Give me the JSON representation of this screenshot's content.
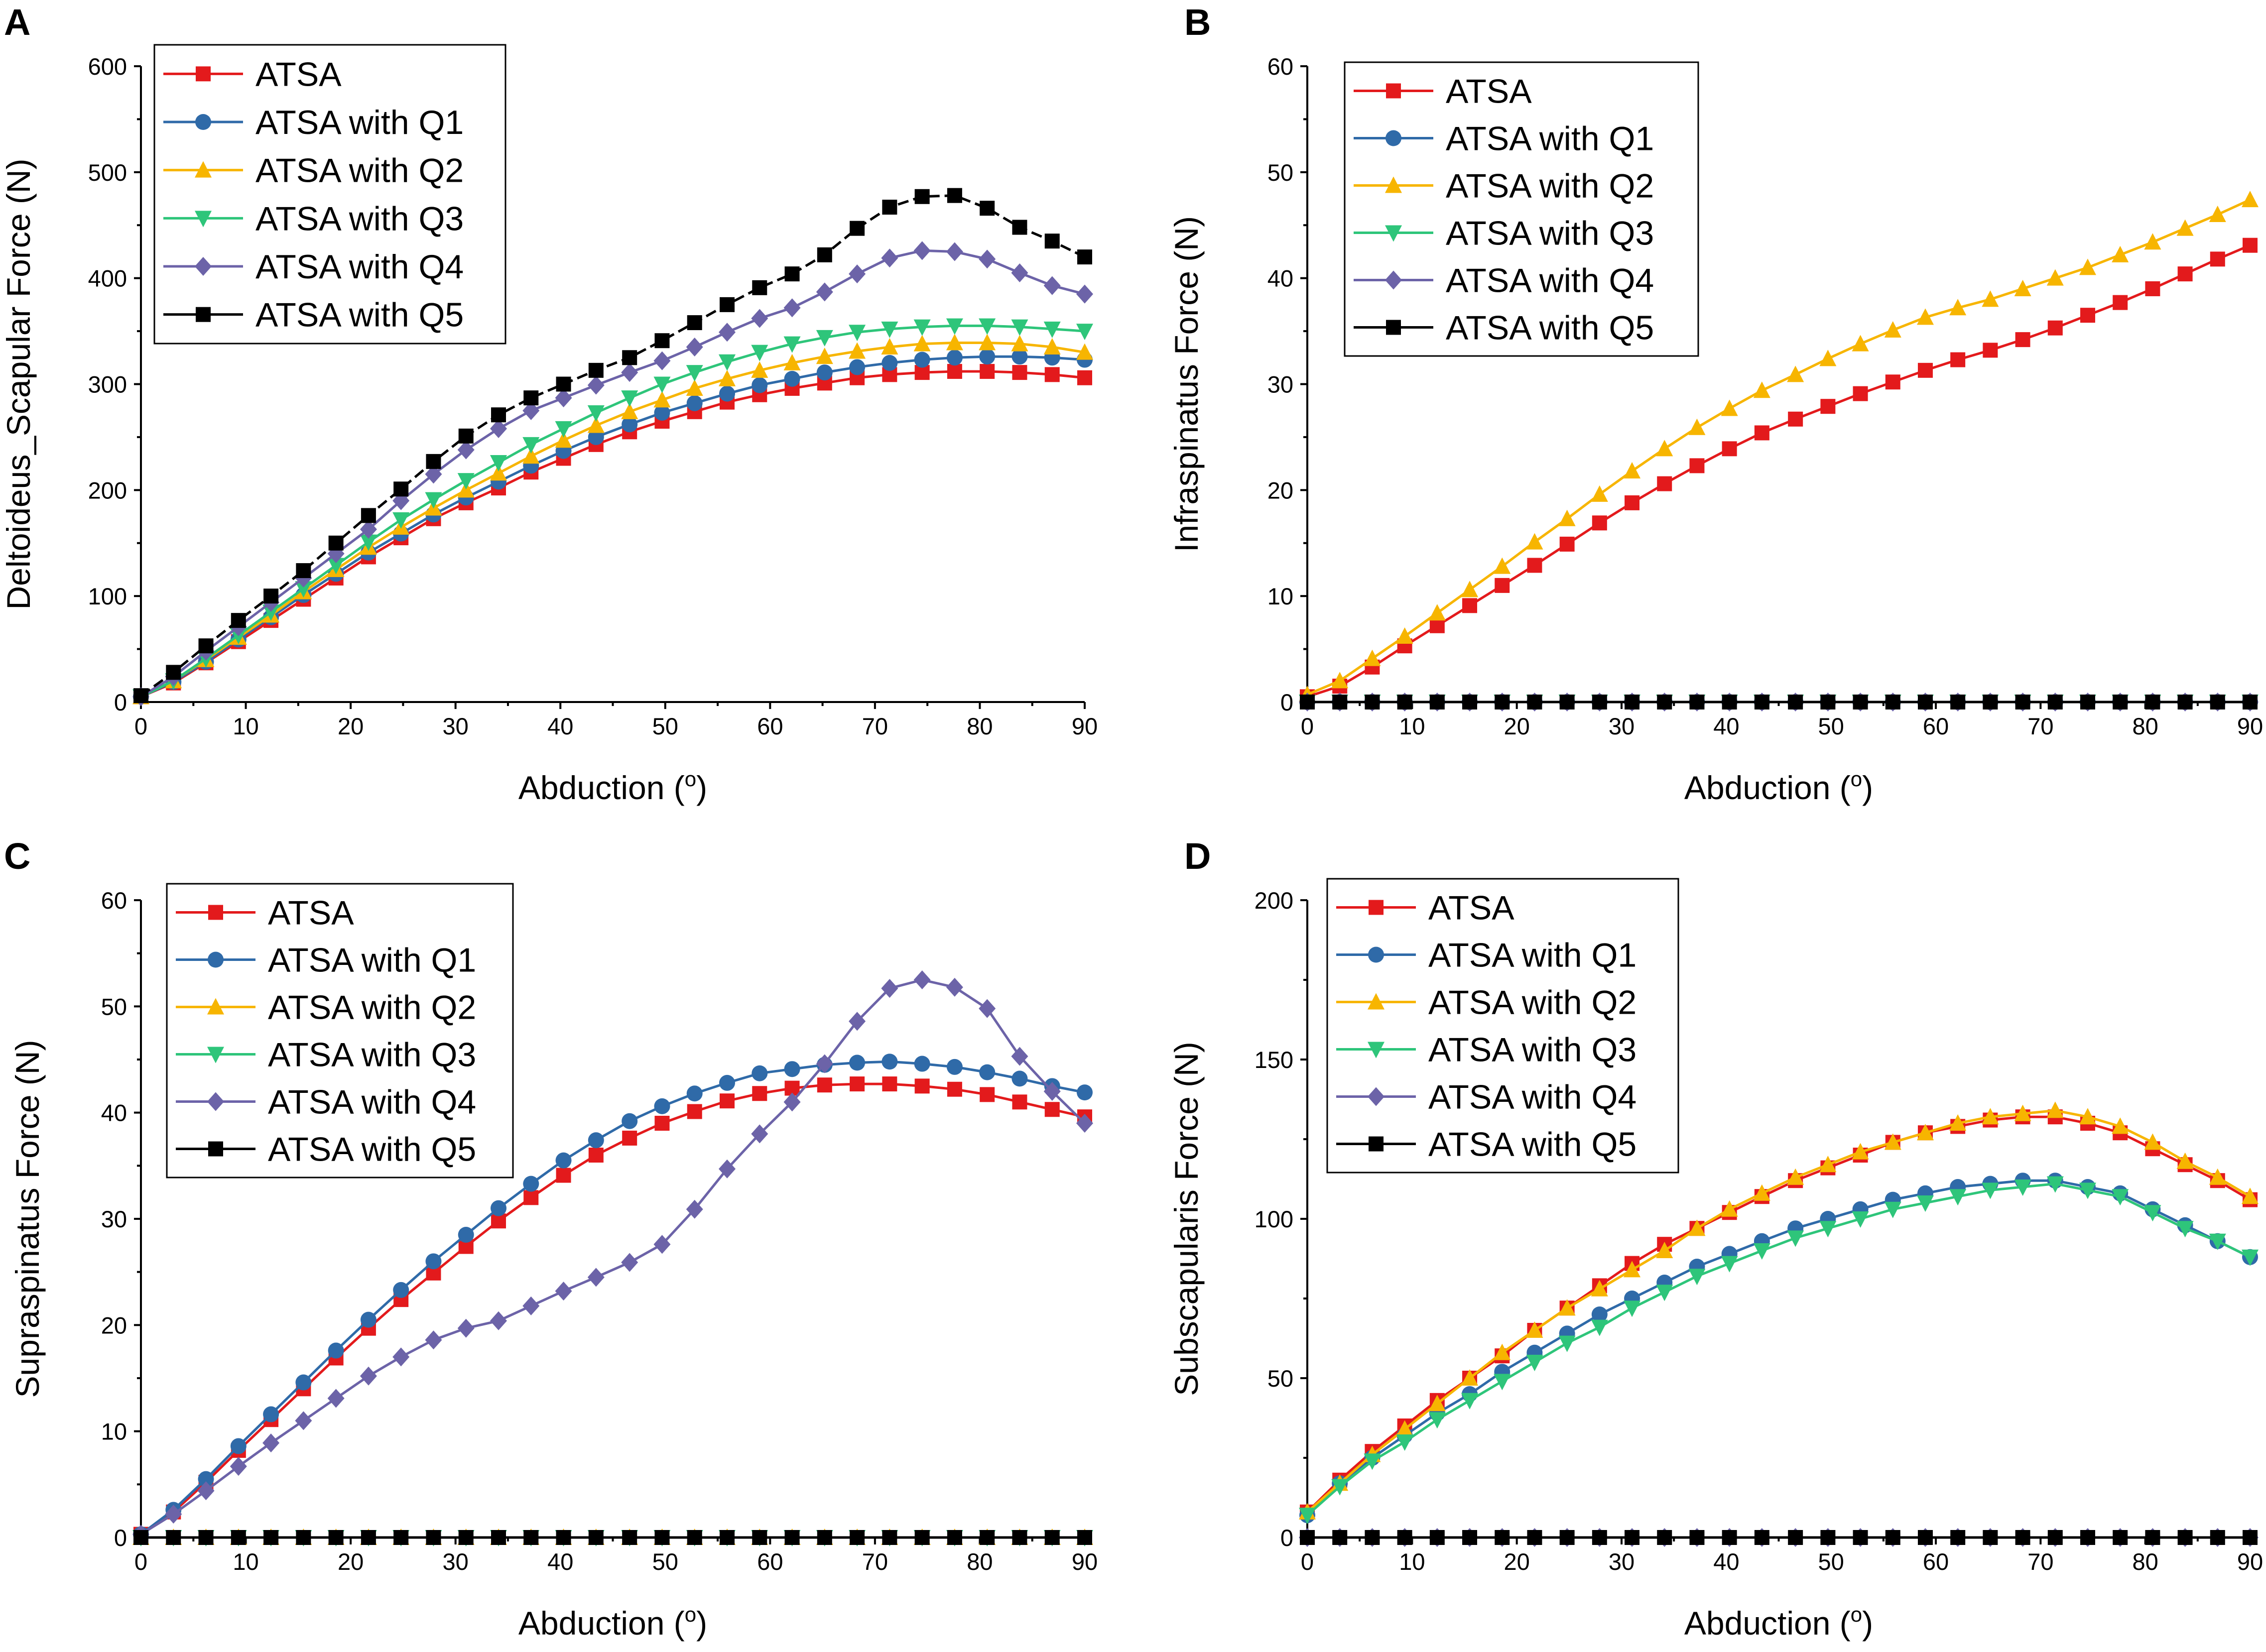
{
  "figure": {
    "series_names": [
      "ATSA",
      "ATSA with Q1",
      "ATSA with Q2",
      "ATSA with Q3",
      "ATSA with Q4",
      "ATSA with Q5"
    ],
    "series_colors": [
      "#e31a1c",
      "#2f6aa8",
      "#f7b500",
      "#2ec57a",
      "#6c63a8",
      "#000000"
    ],
    "series_markers": [
      "square",
      "circle",
      "triangle-up",
      "triangle-down",
      "diamond",
      "square"
    ]
  },
  "chart_data": [
    {
      "id": "A",
      "panel_label": "A",
      "type": "line",
      "title": "",
      "xlabel": "Abduction (",
      "xlabel_sup": "o",
      "xlabel_end": ")",
      "ylabel": "Deltoideus_Scapular Force (N)",
      "xlim": [
        0,
        90
      ],
      "ylim": [
        0,
        600
      ],
      "xticks": [
        0,
        10,
        20,
        30,
        40,
        50,
        60,
        70,
        80,
        90
      ],
      "yticks": [
        0,
        100,
        200,
        300,
        400,
        500,
        600
      ],
      "legend": "top-left",
      "x": [
        0,
        3.1,
        6.2,
        9.3,
        12.4,
        15.5,
        18.6,
        21.7,
        24.8,
        27.9,
        31.0,
        34.1,
        37.2,
        40.3,
        43.4,
        46.6,
        49.7,
        52.8,
        55.9,
        59.0,
        62.1,
        65.2,
        68.3,
        71.4,
        74.5,
        77.6,
        80.7,
        83.8,
        86.9,
        90.0
      ],
      "series": [
        {
          "name": "ATSA",
          "values": [
            5,
            18,
            37,
            57,
            77,
            97,
            117,
            137,
            155,
            173,
            188,
            202,
            217,
            230,
            243,
            255,
            265,
            274,
            283,
            290,
            296,
            301,
            306,
            309,
            311,
            312,
            312,
            311,
            309,
            306
          ]
        },
        {
          "name": "ATSA with Q1",
          "values": [
            5,
            19,
            38,
            59,
            80,
            101,
            121,
            141,
            159,
            177,
            193,
            208,
            223,
            237,
            250,
            262,
            273,
            282,
            291,
            299,
            305,
            311,
            316,
            320,
            323,
            325,
            326,
            326,
            325,
            323
          ]
        },
        {
          "name": "ATSA with Q2",
          "values": [
            5,
            20,
            40,
            61,
            82,
            104,
            125,
            146,
            165,
            183,
            200,
            216,
            232,
            247,
            261,
            274,
            285,
            296,
            305,
            313,
            320,
            326,
            331,
            335,
            338,
            339,
            339,
            338,
            335,
            330
          ]
        },
        {
          "name": "ATSA with Q3",
          "values": [
            5,
            20,
            41,
            63,
            85,
            107,
            129,
            151,
            172,
            191,
            209,
            226,
            243,
            258,
            273,
            287,
            300,
            311,
            321,
            330,
            338,
            344,
            349,
            352,
            354,
            355,
            355,
            354,
            352,
            350
          ]
        },
        {
          "name": "ATSA with Q4",
          "values": [
            5,
            24,
            48,
            71,
            94,
            117,
            140,
            163,
            190,
            215,
            238,
            258,
            275,
            287,
            299,
            311,
            322,
            335,
            349,
            362,
            372,
            387,
            404,
            419,
            426,
            425,
            418,
            405,
            393,
            385
          ]
        },
        {
          "name": "ATSA with Q5",
          "values": [
            6,
            28,
            53,
            77,
            100,
            124,
            150,
            176,
            201,
            227,
            251,
            271,
            287,
            300,
            313,
            325,
            341,
            358,
            375,
            391,
            404,
            422,
            447,
            467,
            477,
            478,
            466,
            448,
            435,
            420
          ]
        }
      ]
    },
    {
      "id": "B",
      "panel_label": "B",
      "type": "line",
      "title": "",
      "xlabel": "Abduction (",
      "xlabel_sup": "o",
      "xlabel_end": ")",
      "ylabel": "Infraspinatus Force (N)",
      "xlim": [
        0,
        90
      ],
      "ylim": [
        0,
        60
      ],
      "xticks": [
        0,
        10,
        20,
        30,
        40,
        50,
        60,
        70,
        80,
        90
      ],
      "yticks": [
        0,
        10,
        20,
        30,
        40,
        50,
        60
      ],
      "legend": "top-left",
      "x": [
        0,
        3.1,
        6.2,
        9.3,
        12.4,
        15.5,
        18.6,
        21.7,
        24.8,
        27.9,
        31.0,
        34.1,
        37.2,
        40.3,
        43.4,
        46.6,
        49.7,
        52.8,
        55.9,
        59.0,
        62.1,
        65.2,
        68.3,
        71.4,
        74.5,
        77.6,
        80.7,
        83.8,
        86.9,
        90.0
      ],
      "series": [
        {
          "name": "ATSA",
          "values": [
            0.5,
            1.5,
            3.3,
            5.3,
            7.2,
            9.1,
            11.0,
            12.9,
            14.9,
            16.9,
            18.8,
            20.6,
            22.3,
            23.9,
            25.4,
            26.7,
            27.9,
            29.1,
            30.2,
            31.3,
            32.3,
            33.2,
            34.2,
            35.3,
            36.5,
            37.7,
            39.0,
            40.4,
            41.8,
            43.1
          ]
        },
        {
          "name": "ATSA with Q1",
          "values": [
            0,
            0,
            0,
            0,
            0,
            0,
            0,
            0,
            0,
            0,
            0,
            0,
            0,
            0,
            0,
            0,
            0,
            0,
            0,
            0,
            0,
            0,
            0,
            0,
            0,
            0,
            0,
            0,
            0,
            0
          ]
        },
        {
          "name": "ATSA with Q2",
          "values": [
            0.7,
            2.0,
            4.1,
            6.2,
            8.4,
            10.6,
            12.8,
            15.1,
            17.3,
            19.6,
            21.8,
            23.9,
            25.9,
            27.7,
            29.4,
            30.9,
            32.4,
            33.8,
            35.1,
            36.3,
            37.2,
            38.0,
            39.0,
            40.0,
            41.0,
            42.2,
            43.4,
            44.7,
            46.0,
            47.4
          ]
        },
        {
          "name": "ATSA with Q3",
          "values": [
            0,
            0,
            0,
            0,
            0,
            0,
            0,
            0,
            0,
            0,
            0,
            0,
            0,
            0,
            0,
            0,
            0,
            0,
            0,
            0,
            0,
            0,
            0,
            0,
            0,
            0,
            0,
            0,
            0,
            0
          ]
        },
        {
          "name": "ATSA with Q4",
          "values": [
            0,
            0,
            0,
            0,
            0,
            0,
            0,
            0,
            0,
            0,
            0,
            0,
            0,
            0,
            0,
            0,
            0,
            0,
            0,
            0,
            0,
            0,
            0,
            0,
            0,
            0,
            0,
            0,
            0,
            0
          ]
        },
        {
          "name": "ATSA with Q5",
          "values": [
            0,
            0,
            0,
            0,
            0,
            0,
            0,
            0,
            0,
            0,
            0,
            0,
            0,
            0,
            0,
            0,
            0,
            0,
            0,
            0,
            0,
            0,
            0,
            0,
            0,
            0,
            0,
            0,
            0,
            0
          ]
        }
      ]
    },
    {
      "id": "C",
      "panel_label": "C",
      "type": "line",
      "title": "",
      "xlabel": "Abduction (",
      "xlabel_sup": "o",
      "xlabel_end": ")",
      "ylabel": "Supraspinatus Force (N)",
      "xlim": [
        0,
        90
      ],
      "ylim": [
        0,
        60
      ],
      "xticks": [
        0,
        10,
        20,
        30,
        40,
        50,
        60,
        70,
        80,
        90
      ],
      "yticks": [
        0,
        10,
        20,
        30,
        40,
        50,
        60
      ],
      "legend": "top-left",
      "x": [
        0,
        3.1,
        6.2,
        9.3,
        12.4,
        15.5,
        18.6,
        21.7,
        24.8,
        27.9,
        31.0,
        34.1,
        37.2,
        40.3,
        43.4,
        46.6,
        49.7,
        52.8,
        55.9,
        59.0,
        62.1,
        65.2,
        68.3,
        71.4,
        74.5,
        77.6,
        80.7,
        83.8,
        86.9,
        90.0
      ],
      "series": [
        {
          "name": "ATSA",
          "values": [
            0.3,
            2.4,
            5.2,
            8.2,
            11.1,
            14.0,
            16.9,
            19.7,
            22.4,
            24.9,
            27.4,
            29.8,
            32.0,
            34.1,
            36.0,
            37.6,
            39.0,
            40.1,
            41.1,
            41.8,
            42.3,
            42.6,
            42.7,
            42.7,
            42.5,
            42.2,
            41.7,
            41.0,
            40.3,
            39.6
          ]
        },
        {
          "name": "ATSA with Q1",
          "values": [
            0.3,
            2.6,
            5.5,
            8.6,
            11.6,
            14.6,
            17.6,
            20.5,
            23.3,
            26.0,
            28.5,
            31.0,
            33.3,
            35.5,
            37.4,
            39.2,
            40.6,
            41.8,
            42.8,
            43.7,
            44.1,
            44.5,
            44.7,
            44.8,
            44.6,
            44.3,
            43.8,
            43.2,
            42.5,
            41.9
          ]
        },
        {
          "name": "ATSA with Q2",
          "values": [
            0,
            0,
            0,
            0,
            0,
            0,
            0,
            0,
            0,
            0,
            0,
            0,
            0,
            0,
            0,
            0,
            0,
            0,
            0,
            0,
            0,
            0,
            0,
            0,
            0,
            0,
            0,
            0,
            0,
            0
          ]
        },
        {
          "name": "ATSA with Q3",
          "values": [
            0,
            0,
            0,
            0,
            0,
            0,
            0,
            0,
            0,
            0,
            0,
            0,
            0,
            0,
            0,
            0,
            0,
            0,
            0,
            0,
            0,
            0,
            0,
            0,
            0,
            0,
            0,
            0,
            0,
            0
          ]
        },
        {
          "name": "ATSA with Q4",
          "values": [
            0.3,
            2.2,
            4.4,
            6.7,
            8.9,
            11.0,
            13.1,
            15.2,
            17.0,
            18.6,
            19.7,
            20.4,
            21.8,
            23.2,
            24.5,
            25.9,
            27.6,
            30.9,
            34.7,
            38.0,
            41.0,
            44.6,
            48.6,
            51.7,
            52.5,
            51.8,
            49.8,
            45.3,
            42.0,
            39.0
          ]
        },
        {
          "name": "ATSA with Q5",
          "values": [
            0,
            0,
            0,
            0,
            0,
            0,
            0,
            0,
            0,
            0,
            0,
            0,
            0,
            0,
            0,
            0,
            0,
            0,
            0,
            0,
            0,
            0,
            0,
            0,
            0,
            0,
            0,
            0,
            0,
            0
          ]
        }
      ]
    },
    {
      "id": "D",
      "panel_label": "D",
      "type": "line",
      "title": "",
      "xlabel": "Abduction (",
      "xlabel_sup": "o",
      "xlabel_end": ")",
      "ylabel": "Subscapularis Force (N)",
      "xlim": [
        0,
        90
      ],
      "ylim": [
        0,
        200
      ],
      "xticks": [
        0,
        10,
        20,
        30,
        40,
        50,
        60,
        70,
        80,
        90
      ],
      "yticks": [
        0,
        50,
        100,
        150,
        200
      ],
      "legend": "top-left",
      "x": [
        0,
        3.1,
        6.2,
        9.3,
        12.4,
        15.5,
        18.6,
        21.7,
        24.8,
        27.9,
        31.0,
        34.1,
        37.2,
        40.3,
        43.4,
        46.6,
        49.7,
        52.8,
        55.9,
        59.0,
        62.1,
        65.2,
        68.3,
        71.4,
        74.5,
        77.6,
        80.7,
        83.8,
        86.9,
        90.0
      ],
      "series": [
        {
          "name": "ATSA",
          "values": [
            8,
            18,
            27,
            35,
            43,
            50,
            57,
            65,
            72,
            79,
            86,
            92,
            97,
            102,
            107,
            112,
            116,
            120,
            124,
            127,
            129,
            131,
            132,
            132,
            130,
            127,
            122,
            117,
            112,
            106
          ]
        },
        {
          "name": "ATSA with Q1",
          "values": [
            7,
            17,
            25,
            32,
            39,
            45,
            52,
            58,
            64,
            70,
            75,
            80,
            85,
            89,
            93,
            97,
            100,
            103,
            106,
            108,
            110,
            111,
            112,
            112,
            110,
            108,
            103,
            98,
            93,
            88
          ]
        },
        {
          "name": "ATSA with Q2",
          "values": [
            8,
            17,
            26,
            34,
            42,
            50,
            58,
            65,
            72,
            78,
            84,
            90,
            97,
            103,
            108,
            113,
            117,
            121,
            124,
            127,
            130,
            132,
            133,
            134,
            132,
            129,
            124,
            118,
            113,
            107
          ]
        },
        {
          "name": "ATSA with Q3",
          "values": [
            7,
            16,
            24,
            30,
            37,
            43,
            49,
            55,
            61,
            66,
            72,
            77,
            82,
            86,
            90,
            94,
            97,
            100,
            103,
            105,
            107,
            109,
            110,
            111,
            109,
            107,
            102,
            97,
            93,
            88
          ]
        },
        {
          "name": "ATSA with Q4",
          "values": [
            0,
            0,
            0,
            0,
            0,
            0,
            0,
            0,
            0,
            0,
            0,
            0,
            0,
            0,
            0,
            0,
            0,
            0,
            0,
            0,
            0,
            0,
            0,
            0,
            0,
            0,
            0,
            0,
            0,
            0
          ]
        },
        {
          "name": "ATSA with Q5",
          "values": [
            0,
            0,
            0,
            0,
            0,
            0,
            0,
            0,
            0,
            0,
            0,
            0,
            0,
            0,
            0,
            0,
            0,
            0,
            0,
            0,
            0,
            0,
            0,
            0,
            0,
            0,
            0,
            0,
            0,
            0
          ]
        }
      ]
    }
  ]
}
